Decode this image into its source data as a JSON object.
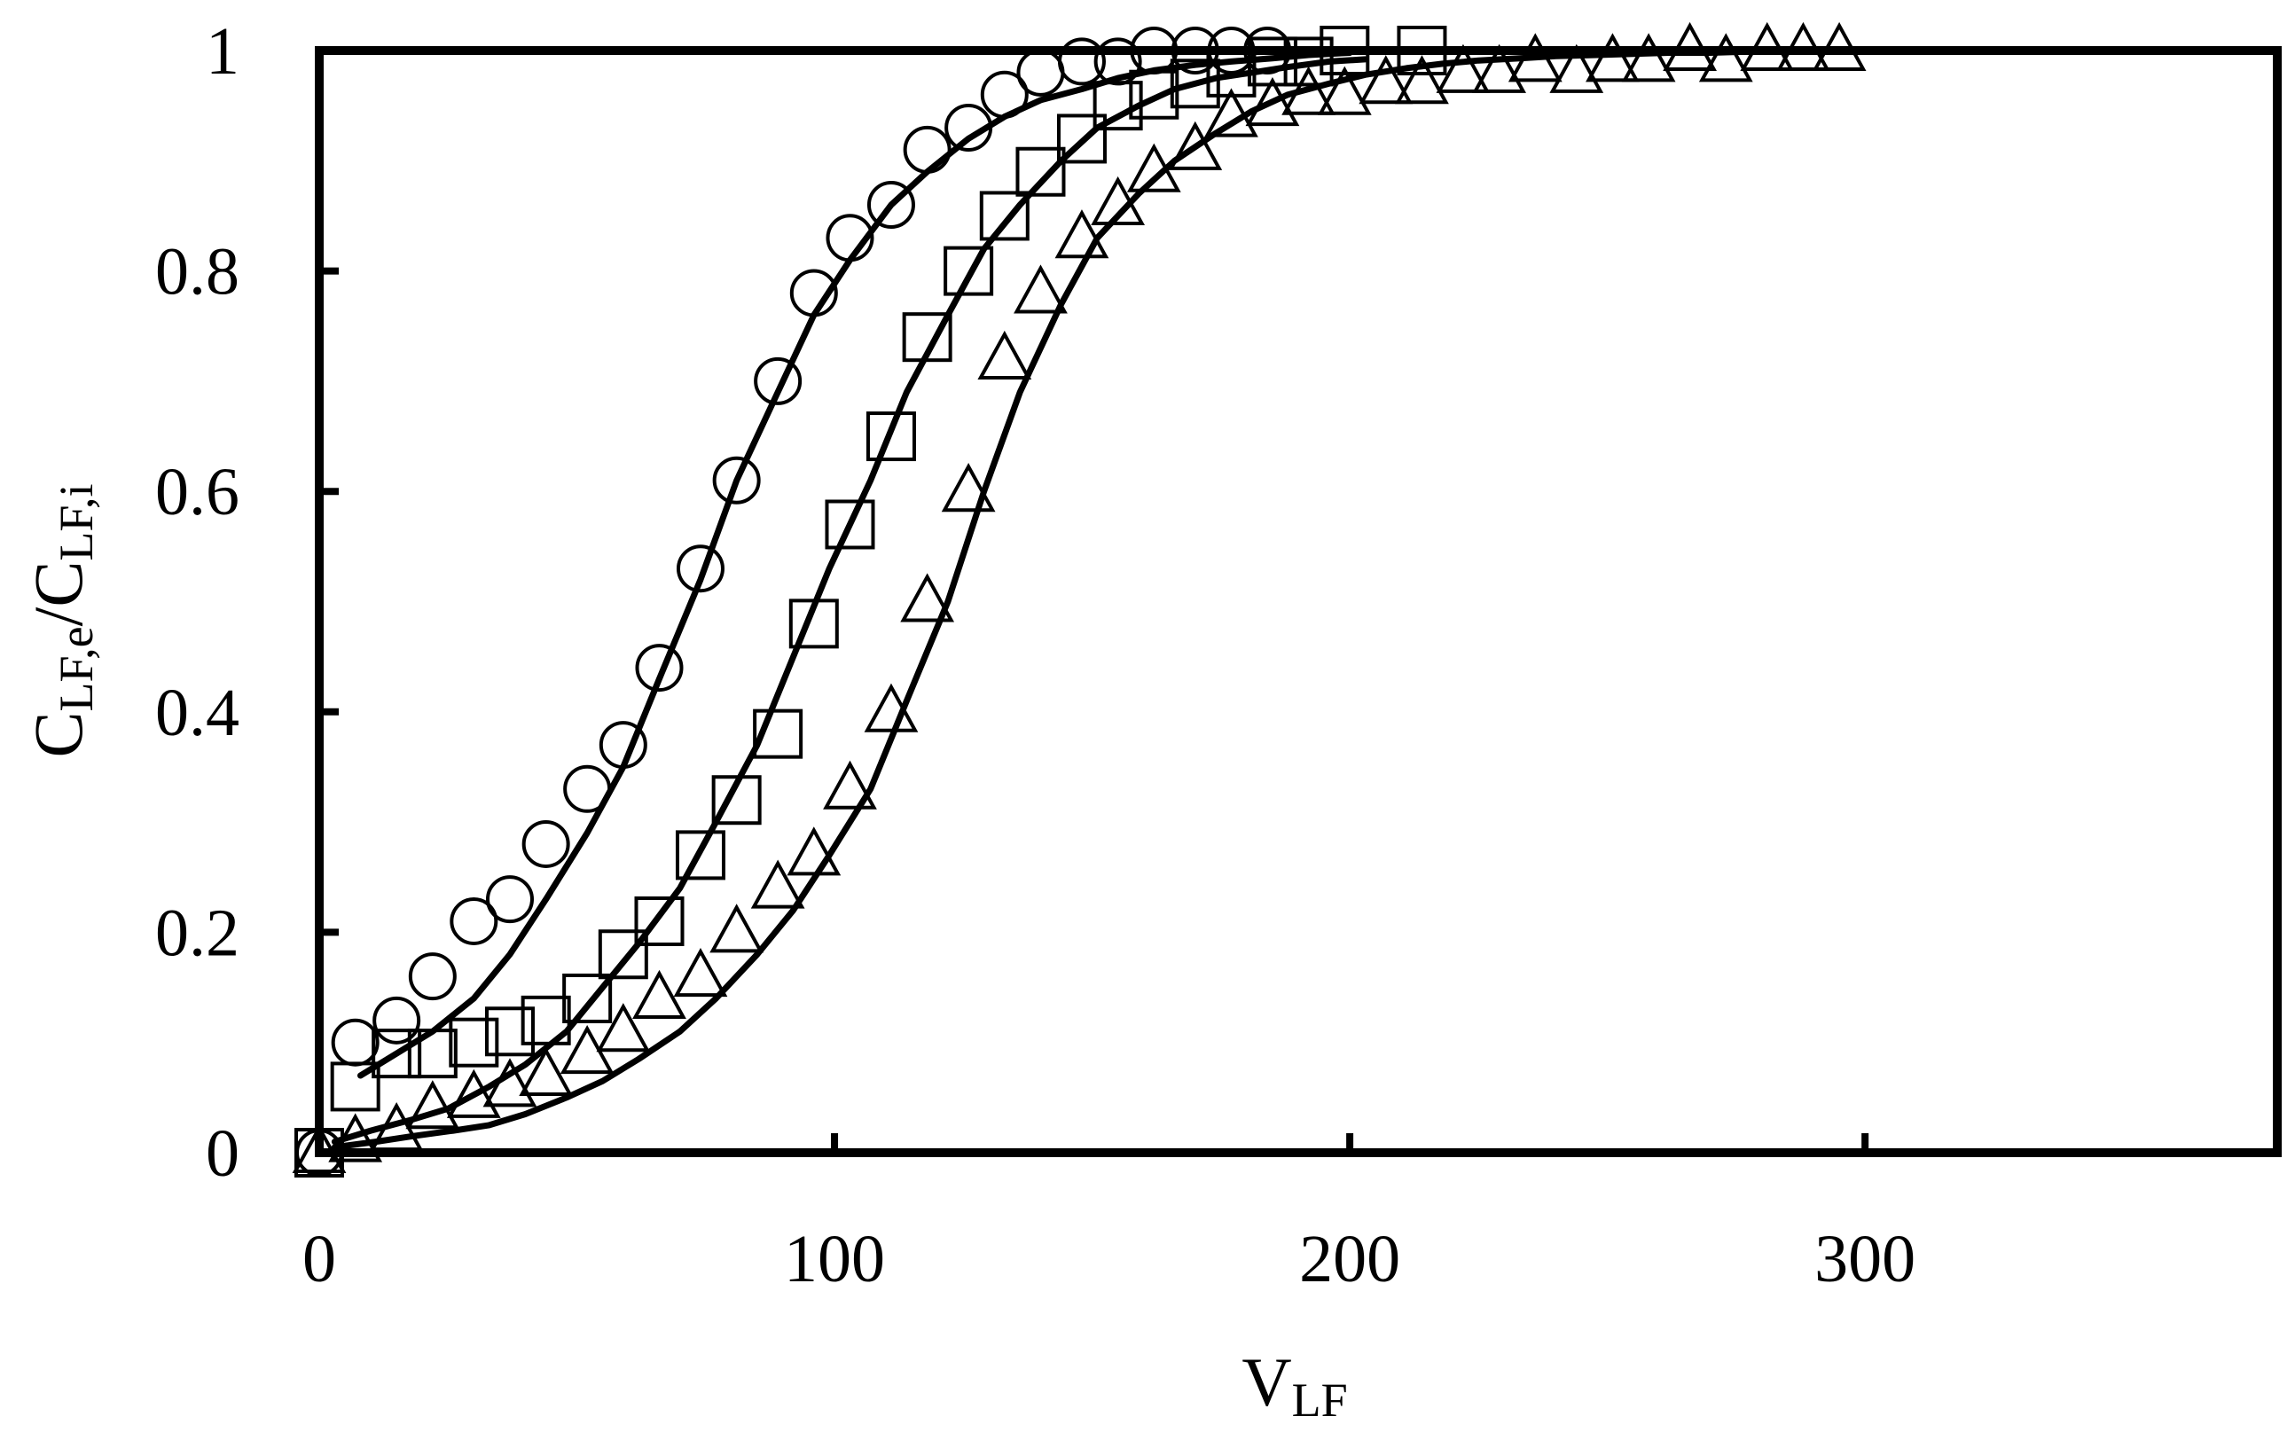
{
  "chart_data": {
    "type": "scatter",
    "title": "",
    "xlabel": {
      "main": "V",
      "sub": "LF"
    },
    "ylabel": {
      "main1": "C",
      "sub1": "LF,e",
      "sep": "/C",
      "sub2": "LF,i"
    },
    "xlim": [
      0,
      380
    ],
    "ylim": [
      0,
      1
    ],
    "xticks": [
      0,
      100,
      200,
      300
    ],
    "xtick_labels": [
      "0",
      "100",
      "200",
      "300"
    ],
    "yticks": [
      0,
      0.2,
      0.4,
      0.6,
      0.8,
      1
    ],
    "ytick_labels": [
      "0",
      "0.2",
      "0.4",
      "0.6",
      "0.8",
      "1"
    ],
    "grid": false,
    "legend": "none",
    "series": [
      {
        "name": "circles",
        "marker": "circle",
        "x": [
          0,
          7,
          15,
          22,
          30,
          37,
          44,
          52,
          59,
          66,
          74,
          81,
          89,
          96,
          103,
          111,
          118,
          126,
          133,
          140,
          148,
          155,
          162,
          170,
          177,
          184
        ],
        "y": [
          0.0,
          0.1,
          0.12,
          0.16,
          0.21,
          0.23,
          0.28,
          0.33,
          0.37,
          0.44,
          0.53,
          0.61,
          0.7,
          0.78,
          0.83,
          0.86,
          0.91,
          0.93,
          0.96,
          0.98,
          0.99,
          0.99,
          1.0,
          1.0,
          1.0,
          1.0
        ]
      },
      {
        "name": "squares",
        "marker": "square",
        "x": [
          0,
          7,
          15,
          22,
          30,
          37,
          44,
          52,
          59,
          66,
          74,
          81,
          89,
          96,
          103,
          111,
          118,
          126,
          133,
          140,
          148,
          155,
          162,
          170,
          177,
          185,
          192,
          199,
          214
        ],
        "y": [
          0.0,
          0.06,
          0.09,
          0.09,
          0.1,
          0.11,
          0.12,
          0.14,
          0.18,
          0.21,
          0.27,
          0.32,
          0.38,
          0.48,
          0.57,
          0.65,
          0.74,
          0.8,
          0.85,
          0.89,
          0.92,
          0.95,
          0.96,
          0.97,
          0.98,
          0.99,
          0.99,
          1.0,
          1.0
        ]
      },
      {
        "name": "triangles",
        "marker": "triangle",
        "x": [
          0,
          7,
          15,
          22,
          30,
          37,
          44,
          52,
          59,
          66,
          74,
          81,
          89,
          96,
          103,
          111,
          118,
          126,
          133,
          140,
          148,
          155,
          162,
          170,
          177,
          185,
          192,
          199,
          207,
          214,
          222,
          229,
          236,
          244,
          251,
          258,
          266,
          273,
          281,
          288,
          295
        ],
        "y": [
          0.0,
          0.01,
          0.02,
          0.04,
          0.05,
          0.06,
          0.07,
          0.09,
          0.11,
          0.14,
          0.16,
          0.2,
          0.24,
          0.27,
          0.33,
          0.4,
          0.5,
          0.6,
          0.72,
          0.78,
          0.83,
          0.86,
          0.89,
          0.91,
          0.94,
          0.95,
          0.96,
          0.96,
          0.97,
          0.97,
          0.98,
          0.98,
          0.99,
          0.98,
          0.99,
          0.99,
          1.0,
          0.99,
          1.0,
          1.0,
          1.0
        ]
      }
    ],
    "fits": [
      {
        "name": "fit-circles",
        "x": [
          8,
          15,
          22,
          30,
          37,
          44,
          52,
          59,
          66,
          74,
          81,
          89,
          96,
          103,
          111,
          118,
          126,
          133,
          140,
          148,
          155,
          162,
          170,
          177,
          185,
          192,
          200
        ],
        "y": [
          0.07,
          0.09,
          0.11,
          0.14,
          0.18,
          0.23,
          0.29,
          0.35,
          0.43,
          0.52,
          0.61,
          0.69,
          0.76,
          0.81,
          0.86,
          0.89,
          0.92,
          0.94,
          0.955,
          0.965,
          0.975,
          0.982,
          0.987,
          0.99,
          0.993,
          0.996,
          0.998
        ]
      },
      {
        "name": "fit-squares",
        "x": [
          3,
          10,
          18,
          25,
          33,
          40,
          48,
          55,
          62,
          70,
          77,
          85,
          92,
          99,
          107,
          114,
          122,
          129,
          136,
          144,
          151,
          159,
          166,
          174,
          181,
          188,
          196,
          203
        ],
        "y": [
          0.01,
          0.02,
          0.03,
          0.04,
          0.06,
          0.08,
          0.11,
          0.15,
          0.19,
          0.24,
          0.3,
          0.37,
          0.45,
          0.53,
          0.61,
          0.69,
          0.76,
          0.82,
          0.86,
          0.9,
          0.93,
          0.95,
          0.965,
          0.975,
          0.98,
          0.985,
          0.99,
          0.992
        ]
      },
      {
        "name": "fit-triangles",
        "x": [
          3,
          11,
          18,
          26,
          33,
          40,
          48,
          55,
          62,
          70,
          77,
          85,
          92,
          99,
          107,
          114,
          122,
          129,
          136,
          144,
          151,
          159,
          166,
          174,
          181,
          188,
          196,
          203,
          211,
          218,
          225,
          233,
          240,
          248,
          255,
          262,
          270,
          277,
          285,
          292,
          297
        ],
        "y": [
          0.005,
          0.01,
          0.015,
          0.02,
          0.025,
          0.035,
          0.05,
          0.065,
          0.085,
          0.11,
          0.14,
          0.18,
          0.22,
          0.27,
          0.33,
          0.41,
          0.5,
          0.6,
          0.69,
          0.77,
          0.83,
          0.87,
          0.9,
          0.925,
          0.945,
          0.96,
          0.97,
          0.978,
          0.984,
          0.988,
          0.991,
          0.993,
          0.995,
          0.996,
          0.997,
          0.998,
          0.998,
          0.999,
          0.999,
          0.999,
          0.999
        ]
      }
    ]
  }
}
